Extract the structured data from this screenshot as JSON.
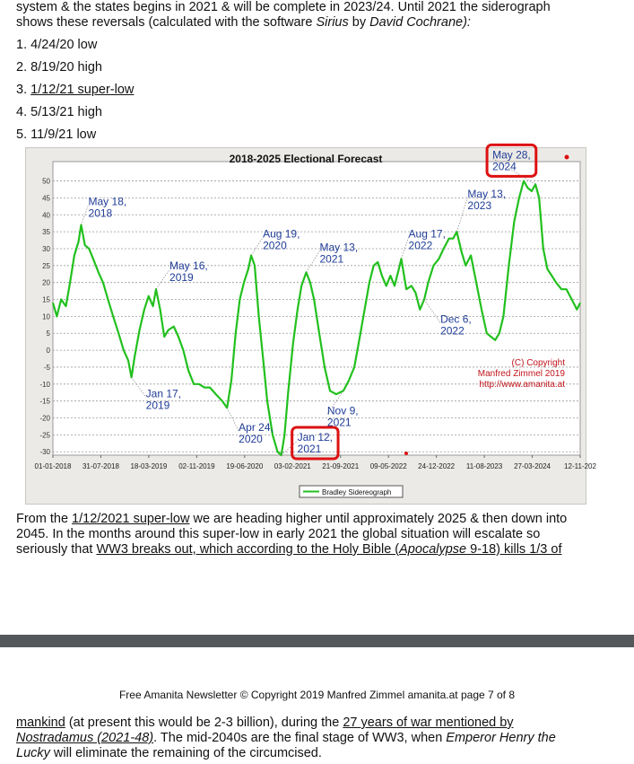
{
  "intro": {
    "line1": "system & the states begins in 2021 & will be complete in 2023/24. Until 2021 the siderograph",
    "line2_a": "shows these reversals (calculated with the software ",
    "line2_b": "Sirius",
    "line2_c": " by ",
    "line2_d": "David Cochrane):"
  },
  "reversals": [
    {
      "num": "1.",
      "text": "4/24/20 low",
      "underlined": false
    },
    {
      "num": "2.",
      "text": "8/19/20 high",
      "underlined": false
    },
    {
      "num": "3.",
      "text": "1/12/21 super-low",
      "underlined": true
    },
    {
      "num": "4.",
      "text": "5/13/21 high",
      "underlined": false
    },
    {
      "num": "5.",
      "text": "11/9/21 low",
      "underlined": false
    }
  ],
  "chart_data": {
    "type": "line",
    "title": "2018-2025 Electional Forecast",
    "x_tick_labels": [
      "01-01-2018",
      "31-07-2018",
      "18-03-2019",
      "02-11-2019",
      "19-06-2020",
      "03-02-2021",
      "21-09-2021",
      "09-05-2022",
      "24-12-2022",
      "11-08-2023",
      "27-03-2024",
      "12-11-202"
    ],
    "y_ticks": [
      50,
      45,
      40,
      35,
      30,
      25,
      20,
      15,
      10,
      5,
      0,
      -5,
      -10,
      -15,
      -20,
      -25,
      -30
    ],
    "ylim": [
      -31,
      52
    ],
    "xlim": [
      "2018-01-01",
      "2024-12-31"
    ],
    "grid": true,
    "legend": {
      "label": "Bradley Sidereograph",
      "placement": "bottom-center"
    },
    "series": [
      {
        "name": "Bradley Sidereograph",
        "color": "#22c01e",
        "points": [
          [
            "2018-01-01",
            14
          ],
          [
            "2018-01-20",
            10
          ],
          [
            "2018-02-10",
            15
          ],
          [
            "2018-03-05",
            13
          ],
          [
            "2018-03-25",
            20
          ],
          [
            "2018-04-15",
            28
          ],
          [
            "2018-05-05",
            32
          ],
          [
            "2018-05-18",
            37
          ],
          [
            "2018-06-05",
            31
          ],
          [
            "2018-06-25",
            30
          ],
          [
            "2018-07-15",
            27
          ],
          [
            "2018-08-10",
            23
          ],
          [
            "2018-09-01",
            20
          ],
          [
            "2018-09-25",
            15
          ],
          [
            "2018-10-20",
            10
          ],
          [
            "2018-11-15",
            5
          ],
          [
            "2018-12-10",
            0
          ],
          [
            "2019-01-01",
            -3
          ],
          [
            "2019-01-17",
            -8
          ],
          [
            "2019-02-01",
            -2
          ],
          [
            "2019-02-25",
            6
          ],
          [
            "2019-03-20",
            12
          ],
          [
            "2019-04-10",
            16
          ],
          [
            "2019-05-01",
            13
          ],
          [
            "2019-05-16",
            18
          ],
          [
            "2019-06-05",
            12
          ],
          [
            "2019-06-25",
            4
          ],
          [
            "2019-07-15",
            6
          ],
          [
            "2019-08-10",
            7
          ],
          [
            "2019-09-01",
            4
          ],
          [
            "2019-09-25",
            0
          ],
          [
            "2019-10-20",
            -6
          ],
          [
            "2019-11-15",
            -10
          ],
          [
            "2019-12-10",
            -10
          ],
          [
            "2020-01-05",
            -11
          ],
          [
            "2020-02-01",
            -11
          ],
          [
            "2020-03-01",
            -13
          ],
          [
            "2020-04-01",
            -15
          ],
          [
            "2020-04-24",
            -17
          ],
          [
            "2020-05-15",
            -9
          ],
          [
            "2020-06-05",
            5
          ],
          [
            "2020-06-25",
            15
          ],
          [
            "2020-07-15",
            20
          ],
          [
            "2020-08-05",
            24
          ],
          [
            "2020-08-19",
            28
          ],
          [
            "2020-09-05",
            25
          ],
          [
            "2020-09-25",
            10
          ],
          [
            "2020-10-15",
            -2
          ],
          [
            "2020-11-05",
            -15
          ],
          [
            "2020-12-01",
            -25
          ],
          [
            "2020-12-25",
            -30
          ],
          [
            "2021-01-12",
            -31
          ],
          [
            "2021-01-28",
            -25
          ],
          [
            "2021-02-15",
            -12
          ],
          [
            "2021-03-10",
            2
          ],
          [
            "2021-04-01",
            12
          ],
          [
            "2021-04-20",
            19
          ],
          [
            "2021-05-13",
            23
          ],
          [
            "2021-06-01",
            20
          ],
          [
            "2021-06-20",
            15
          ],
          [
            "2021-07-15",
            5
          ],
          [
            "2021-08-10",
            -5
          ],
          [
            "2021-09-05",
            -12
          ],
          [
            "2021-10-05",
            -13
          ],
          [
            "2021-11-09",
            -12
          ],
          [
            "2021-12-05",
            -9
          ],
          [
            "2022-01-01",
            -5
          ],
          [
            "2022-01-25",
            3
          ],
          [
            "2022-02-20",
            12
          ],
          [
            "2022-03-15",
            20
          ],
          [
            "2022-04-05",
            25
          ],
          [
            "2022-04-25",
            26
          ],
          [
            "2022-05-15",
            22
          ],
          [
            "2022-06-05",
            19
          ],
          [
            "2022-06-25",
            22
          ],
          [
            "2022-07-15",
            19
          ],
          [
            "2022-08-05",
            24
          ],
          [
            "2022-08-17",
            27
          ],
          [
            "2022-09-10",
            18
          ],
          [
            "2022-10-05",
            19
          ],
          [
            "2022-10-25",
            17
          ],
          [
            "2022-11-15",
            12
          ],
          [
            "2022-12-06",
            15
          ],
          [
            "2022-12-25",
            20
          ],
          [
            "2023-01-20",
            25
          ],
          [
            "2023-02-15",
            27
          ],
          [
            "2023-03-10",
            30
          ],
          [
            "2023-04-05",
            33
          ],
          [
            "2023-04-25",
            33
          ],
          [
            "2023-05-13",
            35
          ],
          [
            "2023-06-05",
            29
          ],
          [
            "2023-06-25",
            25
          ],
          [
            "2023-07-20",
            28
          ],
          [
            "2023-08-15",
            20
          ],
          [
            "2023-09-10",
            12
          ],
          [
            "2023-10-05",
            5
          ],
          [
            "2023-10-25",
            4
          ],
          [
            "2023-11-15",
            3
          ],
          [
            "2023-12-05",
            5
          ],
          [
            "2023-12-25",
            10
          ],
          [
            "2024-01-20",
            25
          ],
          [
            "2024-02-15",
            38
          ],
          [
            "2024-03-10",
            45
          ],
          [
            "2024-04-01",
            50
          ],
          [
            "2024-04-20",
            48
          ],
          [
            "2024-05-10",
            47
          ],
          [
            "2024-05-28",
            49
          ],
          [
            "2024-06-15",
            45
          ],
          [
            "2024-07-05",
            30
          ],
          [
            "2024-07-25",
            24
          ],
          [
            "2024-08-15",
            22
          ],
          [
            "2024-09-05",
            20
          ],
          [
            "2024-10-01",
            18
          ],
          [
            "2024-10-25",
            18
          ],
          [
            "2024-11-20",
            15
          ],
          [
            "2024-12-15",
            12
          ],
          [
            "2024-12-31",
            14
          ]
        ]
      }
    ],
    "annotations": [
      {
        "text": [
          "May 18,",
          "2018"
        ],
        "color": "#1f3c96",
        "boxed": false
      },
      {
        "text": [
          "Jan 17,",
          "2019"
        ],
        "color": "#1f3c96",
        "boxed": false
      },
      {
        "text": [
          "May 16,",
          "2019"
        ],
        "color": "#1f3c96",
        "boxed": false
      },
      {
        "text": [
          "Apr 24,",
          "2020"
        ],
        "color": "#1f3c96",
        "boxed": false
      },
      {
        "text": [
          "Aug 19,",
          "2020"
        ],
        "color": "#1f3c96",
        "boxed": false
      },
      {
        "text": [
          "May 13,",
          "2021"
        ],
        "color": "#1f3c96",
        "boxed": false
      },
      {
        "text": [
          "Jan 12,",
          "2021"
        ],
        "color": "#1f3c96",
        "boxed": true
      },
      {
        "text": [
          "Nov 9,",
          "2021"
        ],
        "color": "#1f3c96",
        "boxed": false
      },
      {
        "text": [
          "Aug 17,",
          "2022"
        ],
        "color": "#1f3c96",
        "boxed": false
      },
      {
        "text": [
          "Dec 6,",
          "2022"
        ],
        "color": "#1f3c96",
        "boxed": false
      },
      {
        "text": [
          "May 13,",
          "2023"
        ],
        "color": "#1f3c96",
        "boxed": false
      },
      {
        "text": [
          "May 28,",
          "2024"
        ],
        "color": "#1f3c96",
        "boxed": true
      }
    ],
    "copyright": [
      "(C) Copyright",
      "Manfred Zimmel 2019",
      "http://www.amanita.at"
    ],
    "highlight_color": "#dd1111"
  },
  "after": {
    "l1_a": "From the ",
    "l1_b": "1/12/2021 super-low",
    "l1_c": " we are heading higher until approximately 2025 & then down into",
    "l2": "2045. In the months around this super-low in early 2021 the global situation will escalate so",
    "l3_a": "seriously that ",
    "l3_b": "WW3 breaks out, which according to the Holy Bible (",
    "l3_c": "Apocalypse",
    "l3_d": " 9-18) kills 1/3 of"
  },
  "footer": "Free Amanita Newsletter © Copyright 2019 Manfred Zimmel amanita.at page 7 of 8",
  "continued": {
    "l1_a": "mankind",
    "l1_b": " (at present this would be 2-3 billion), during the ",
    "l1_c": "27 years of war mentioned by",
    "l2_a": "Nostradamus (2021-48)",
    "l2_b": ". The mid-2040s are the final stage of WW3, when ",
    "l2_c": "Emperor Henry the",
    "l3_a": "Lucky",
    "l3_b": " will eliminate the remaining of the circumcised."
  }
}
